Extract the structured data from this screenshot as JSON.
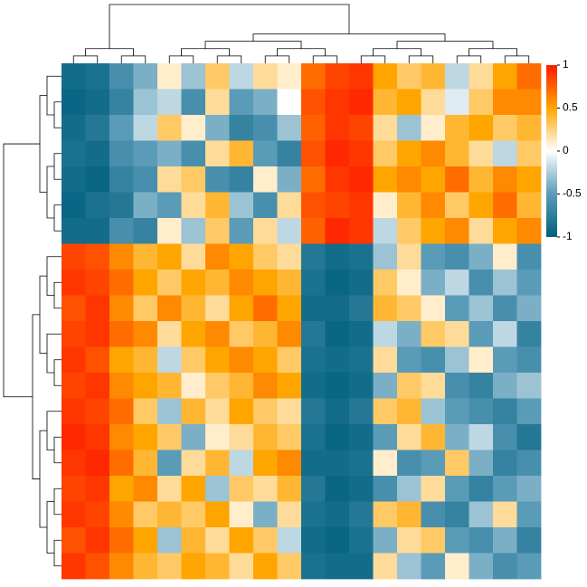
{
  "chart_data": {
    "type": "heatmap",
    "zlim": [
      -1,
      1
    ],
    "colorbar_ticks": [
      1,
      0.5,
      0,
      -0.5,
      -1
    ],
    "colorscale": [
      {
        "value": -1,
        "color": "#00607f"
      },
      {
        "value": -0.5,
        "color": "#5a9bb8"
      },
      {
        "value": 0,
        "color": "#ffffff"
      },
      {
        "value": 0.5,
        "color": "#ffa500"
      },
      {
        "value": 1,
        "color": "#ff1a00"
      }
    ],
    "z": [
      [
        -0.9,
        -0.85,
        -0.6,
        -0.4,
        0.1,
        -0.3,
        0.3,
        -0.2,
        0.2,
        0.1,
        0.7,
        0.85,
        0.9,
        0.5,
        0.3,
        0.4,
        -0.2,
        0.2,
        0.5,
        0.7
      ],
      [
        -0.95,
        -0.9,
        -0.7,
        -0.3,
        -0.2,
        -0.6,
        0.2,
        -0.5,
        -0.4,
        0.0,
        0.8,
        0.9,
        0.95,
        0.4,
        0.5,
        0.2,
        -0.1,
        0.3,
        0.6,
        0.6
      ],
      [
        -0.9,
        -0.8,
        -0.5,
        -0.2,
        0.3,
        0.1,
        -0.4,
        -0.7,
        -0.6,
        -0.3,
        0.75,
        0.9,
        0.85,
        0.2,
        -0.3,
        0.1,
        0.4,
        0.5,
        0.3,
        0.4
      ],
      [
        -0.85,
        -0.9,
        -0.6,
        -0.5,
        -0.4,
        -0.6,
        0.2,
        0.4,
        -0.5,
        -0.7,
        0.8,
        0.95,
        0.9,
        0.3,
        0.5,
        0.6,
        0.4,
        0.2,
        -0.2,
        0.3
      ],
      [
        -0.9,
        -0.95,
        -0.7,
        -0.6,
        0.2,
        0.3,
        -0.6,
        -0.7,
        0.1,
        -0.4,
        0.7,
        0.9,
        0.95,
        0.5,
        0.6,
        0.5,
        0.7,
        0.4,
        0.6,
        0.5
      ],
      [
        -0.95,
        -0.85,
        -0.8,
        -0.4,
        -0.5,
        0.2,
        0.4,
        -0.3,
        -0.6,
        0.2,
        0.8,
        0.85,
        0.9,
        0.1,
        0.4,
        0.6,
        0.3,
        0.5,
        0.7,
        0.4
      ],
      [
        -0.9,
        -0.9,
        -0.6,
        -0.7,
        0.1,
        -0.3,
        0.3,
        -0.5,
        0.2,
        -0.2,
        0.75,
        0.95,
        0.9,
        -0.2,
        0.3,
        0.5,
        0.6,
        0.2,
        0.5,
        0.6
      ],
      [
        0.85,
        0.8,
        0.6,
        0.4,
        0.5,
        0.2,
        0.6,
        0.5,
        0.3,
        0.2,
        -0.8,
        -0.9,
        -0.85,
        -0.3,
        0.2,
        -0.5,
        -0.6,
        -0.4,
        0.1,
        -0.6
      ],
      [
        0.9,
        0.85,
        0.7,
        0.5,
        0.3,
        0.5,
        0.4,
        0.6,
        0.5,
        0.4,
        -0.85,
        -0.95,
        -0.9,
        0.3,
        0.1,
        -0.4,
        -0.2,
        -0.6,
        -0.3,
        -0.5
      ],
      [
        0.8,
        0.9,
        0.6,
        0.3,
        0.6,
        0.4,
        0.2,
        0.5,
        0.7,
        0.5,
        -0.9,
        -0.9,
        -0.8,
        0.4,
        0.3,
        0.1,
        -0.5,
        -0.3,
        -0.6,
        -0.4
      ],
      [
        0.85,
        0.9,
        0.7,
        0.6,
        0.2,
        0.5,
        0.6,
        0.3,
        0.4,
        0.6,
        -0.8,
        -0.95,
        -0.9,
        -0.2,
        -0.4,
        0.3,
        0.2,
        -0.5,
        -0.2,
        -0.7
      ],
      [
        0.9,
        0.8,
        0.5,
        0.4,
        -0.2,
        0.3,
        0.5,
        0.6,
        0.5,
        0.3,
        -0.85,
        -0.9,
        -0.85,
        0.2,
        -0.5,
        -0.6,
        -0.3,
        0.1,
        -0.5,
        -0.6
      ],
      [
        0.85,
        0.9,
        0.6,
        0.5,
        0.4,
        0.1,
        0.3,
        0.4,
        0.6,
        0.5,
        -0.9,
        -0.95,
        -0.9,
        -0.4,
        0.3,
        0.2,
        -0.6,
        -0.7,
        -0.4,
        -0.3
      ],
      [
        0.9,
        0.85,
        0.7,
        0.3,
        -0.3,
        0.4,
        0.2,
        0.5,
        0.3,
        0.2,
        -0.8,
        -0.9,
        -0.8,
        0.3,
        0.4,
        -0.3,
        -0.5,
        -0.6,
        -0.7,
        -0.5
      ],
      [
        0.95,
        0.9,
        0.6,
        0.5,
        0.3,
        -0.4,
        0.1,
        0.2,
        0.4,
        0.3,
        -0.85,
        -0.95,
        -0.9,
        -0.5,
        0.2,
        0.4,
        -0.4,
        -0.2,
        -0.6,
        -0.8
      ],
      [
        0.9,
        0.95,
        0.7,
        0.4,
        -0.5,
        0.2,
        0.4,
        -0.2,
        0.5,
        0.6,
        -0.9,
        -0.9,
        -0.85,
        0.1,
        -0.6,
        -0.5,
        0.3,
        -0.4,
        -0.7,
        -0.6
      ],
      [
        0.85,
        0.9,
        0.5,
        0.6,
        0.2,
        0.5,
        -0.3,
        0.3,
        0.2,
        0.4,
        -0.8,
        -0.95,
        -0.9,
        -0.6,
        -0.3,
        0.2,
        -0.5,
        -0.7,
        -0.5,
        -0.4
      ],
      [
        0.9,
        0.85,
        0.6,
        0.3,
        0.4,
        0.3,
        0.5,
        0.1,
        -0.4,
        0.2,
        -0.85,
        -0.9,
        -0.8,
        0.3,
        0.4,
        -0.6,
        -0.7,
        -0.3,
        0.2,
        -0.5
      ],
      [
        0.8,
        0.9,
        0.7,
        0.5,
        -0.3,
        0.4,
        0.2,
        0.5,
        0.3,
        -0.2,
        -0.9,
        -0.95,
        -0.85,
        -0.4,
        0.2,
        0.3,
        -0.5,
        -0.6,
        -0.4,
        -0.7
      ],
      [
        0.9,
        0.8,
        0.6,
        0.4,
        0.3,
        0.5,
        0.4,
        0.2,
        0.5,
        0.3,
        -0.85,
        -0.9,
        -0.9,
        0.2,
        -0.3,
        -0.5,
        0.1,
        -0.4,
        -0.6,
        -0.5
      ]
    ]
  }
}
